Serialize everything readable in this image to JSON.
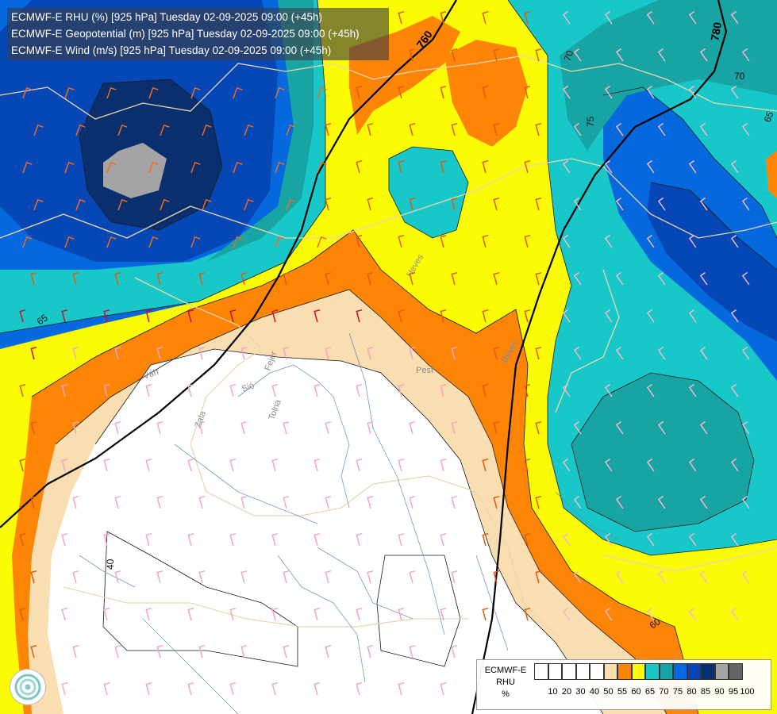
{
  "header": {
    "line1": "ECMWF-E RHU (%) [925 hPa] Tuesday 02-09-2025 09:00 (+45h)",
    "line2": "ECMWF-E Geopotential (m) [925 hPa] Tuesday 02-09-2025 09:00 (+45h)",
    "line3": "ECMWF-E Wind (m/s) [925 hPa] Tuesday 02-09-2025 09:00 (+45h)"
  },
  "contour_labels": {
    "geo_760": "760",
    "geo_780": "780",
    "rh_40": "40",
    "rh_60": "60",
    "rh_65": "65",
    "rh_70": "70",
    "rh_75": "75",
    "rh_65b": "65",
    "rh_70b": "70"
  },
  "rivers": {
    "vag": "Váh",
    "sio": "Sió",
    "fejer": "Fejér",
    "tolna": "Tolna",
    "zala": "Zala",
    "pest": "Pest",
    "bekes": "Békés",
    "heves": "Heves"
  },
  "legend": {
    "title1": "ECMWF-E",
    "title2": "RHU",
    "unit": "%",
    "swatches": [
      "#ffffff",
      "#ffffff",
      "#ffffff",
      "#ffffff",
      "#ffffff",
      "#f8deb0",
      "#fd8505",
      "#fbfb03",
      "#18c8c8",
      "#19a4a4",
      "#0568dc",
      "#0547b4",
      "#0a2f6e",
      "#a4a4a4",
      "#646464"
    ],
    "ticks": [
      "10",
      "20",
      "30",
      "40",
      "50",
      "55",
      "60",
      "65",
      "70",
      "75",
      "80",
      "85",
      "90",
      "95",
      "100"
    ]
  },
  "colors": {
    "rh_lt50": "#ffffff",
    "rh_50_55": "#f8deb0",
    "rh_55_60": "#fd8505",
    "rh_60_65": "#fbfb03",
    "rh_65_70": "#18c8c8",
    "rh_70_75": "#19a4a4",
    "rh_75_80": "#0568dc",
    "rh_80_85": "#0547b4",
    "rh_85_90": "#0a2f6e",
    "rh_90_95": "#a4a4a4"
  }
}
